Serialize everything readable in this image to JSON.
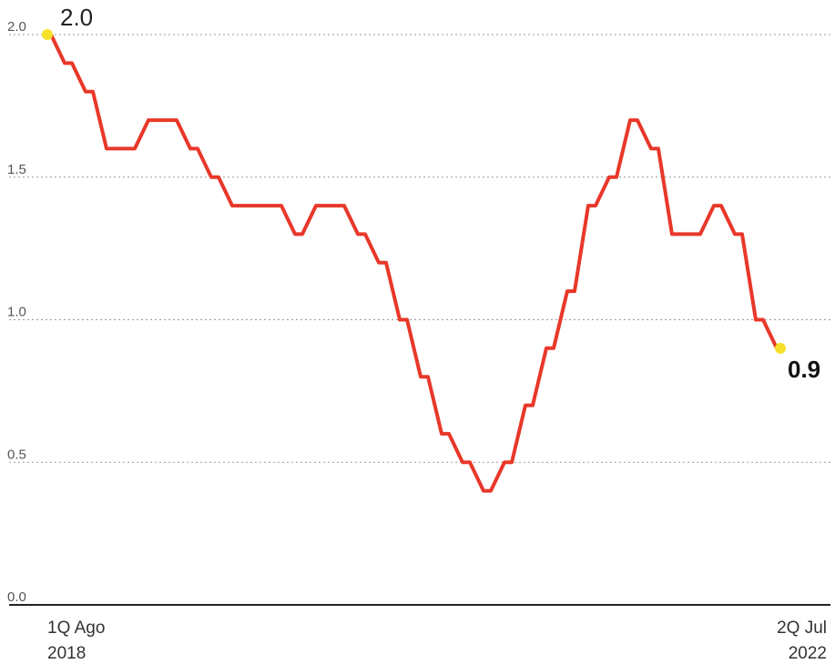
{
  "chart_data": {
    "type": "line",
    "title": "",
    "xlabel": "",
    "ylabel": "",
    "ylim": [
      0,
      2.0
    ],
    "grid": true,
    "y_ticks": [
      "0.0",
      "0.5",
      "1.0",
      "1.5",
      "2.0"
    ],
    "x_tick_labels": {
      "start_line1": "1Q Ago",
      "start_line2": "2018",
      "end_line1": "2Q Jul",
      "end_line2": "2022"
    },
    "series": [
      {
        "color": "#e8382a",
        "values": [
          2.0,
          1.9,
          1.8,
          1.6,
          1.6,
          1.7,
          1.7,
          1.6,
          1.5,
          1.4,
          1.4,
          1.4,
          1.3,
          1.4,
          1.4,
          1.3,
          1.2,
          1.0,
          0.8,
          0.6,
          0.5,
          0.4,
          0.5,
          0.7,
          0.9,
          1.1,
          1.4,
          1.5,
          1.7,
          1.6,
          1.3,
          1.3,
          1.4,
          1.3,
          1.0,
          0.9
        ]
      }
    ],
    "annotations": {
      "start_value": "2.0",
      "end_value": "0.9",
      "marker_color": "#f5e12a"
    }
  }
}
